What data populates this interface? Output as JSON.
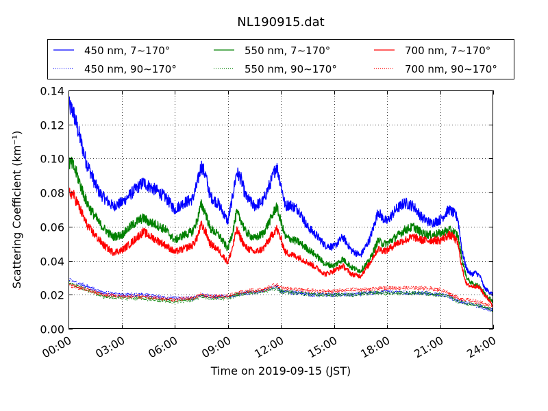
{
  "chart_data": {
    "type": "line",
    "title": "NL190915.dat",
    "xlabel": "Time on 2019-09-15 (JST)",
    "ylabel": "Scattering Coefficient (km⁻¹)",
    "x_unit": "hours",
    "xlim": [
      0,
      24
    ],
    "ylim": [
      0.0,
      0.14
    ],
    "grid": true,
    "legend_position": "top",
    "x_ticks": [
      {
        "value": 0,
        "label": "00:00"
      },
      {
        "value": 3,
        "label": "03:00"
      },
      {
        "value": 6,
        "label": "06:00"
      },
      {
        "value": 9,
        "label": "09:00"
      },
      {
        "value": 12,
        "label": "12:00"
      },
      {
        "value": 15,
        "label": "15:00"
      },
      {
        "value": 18,
        "label": "18:00"
      },
      {
        "value": 21,
        "label": "21:00"
      },
      {
        "value": 24,
        "label": "24:00"
      }
    ],
    "y_ticks": [
      {
        "value": 0.0,
        "label": "0.00"
      },
      {
        "value": 0.02,
        "label": "0.02"
      },
      {
        "value": 0.04,
        "label": "0.04"
      },
      {
        "value": 0.06,
        "label": "0.06"
      },
      {
        "value": 0.08,
        "label": "0.08"
      },
      {
        "value": 0.1,
        "label": "0.10"
      },
      {
        "value": 0.12,
        "label": "0.12"
      },
      {
        "value": 0.14,
        "label": "0.14"
      }
    ],
    "series": [
      {
        "name": "450 nm, 7∼170°",
        "color": "#0000ff",
        "style": "solid",
        "x": [
          0,
          0.25,
          0.5,
          0.75,
          1,
          1.25,
          1.5,
          1.75,
          2,
          2.5,
          3,
          3.5,
          4,
          4.25,
          4.5,
          5,
          5.5,
          6,
          6.5,
          7,
          7.25,
          7.5,
          7.75,
          8,
          8.5,
          9,
          9.25,
          9.5,
          9.75,
          10,
          10.5,
          11,
          11.5,
          11.75,
          12,
          12.25,
          12.5,
          13,
          13.5,
          14,
          14.5,
          15,
          15.5,
          16,
          16.5,
          17,
          17.25,
          17.5,
          17.75,
          18,
          18.5,
          19,
          19.5,
          20,
          20.5,
          21,
          21.5,
          21.75,
          22,
          22.25,
          22.5,
          22.75,
          23,
          23.25,
          23.5,
          24
        ],
        "y": [
          0.131,
          0.128,
          0.118,
          0.108,
          0.098,
          0.092,
          0.085,
          0.08,
          0.077,
          0.072,
          0.074,
          0.079,
          0.084,
          0.086,
          0.084,
          0.081,
          0.077,
          0.07,
          0.074,
          0.076,
          0.084,
          0.096,
          0.09,
          0.078,
          0.073,
          0.063,
          0.076,
          0.092,
          0.088,
          0.078,
          0.072,
          0.075,
          0.088,
          0.096,
          0.085,
          0.072,
          0.073,
          0.07,
          0.06,
          0.055,
          0.049,
          0.048,
          0.054,
          0.046,
          0.043,
          0.052,
          0.06,
          0.069,
          0.065,
          0.063,
          0.07,
          0.074,
          0.072,
          0.065,
          0.062,
          0.064,
          0.07,
          0.068,
          0.065,
          0.045,
          0.035,
          0.032,
          0.033,
          0.031,
          0.024,
          0.02
        ]
      },
      {
        "name": "450 nm, 90∼170°",
        "color": "#0000ff",
        "style": "dotted",
        "x": [
          0,
          1,
          2,
          3,
          4,
          5,
          6,
          7,
          7.5,
          8,
          9,
          9.5,
          10,
          11,
          11.75,
          12,
          13,
          14,
          15,
          16,
          17,
          18,
          19,
          20,
          21,
          21.5,
          22,
          23,
          24
        ],
        "y": [
          0.029,
          0.025,
          0.021,
          0.02,
          0.02,
          0.019,
          0.018,
          0.018,
          0.02,
          0.019,
          0.019,
          0.02,
          0.021,
          0.022,
          0.025,
          0.022,
          0.021,
          0.02,
          0.02,
          0.02,
          0.021,
          0.022,
          0.021,
          0.021,
          0.02,
          0.019,
          0.016,
          0.014,
          0.011
        ]
      },
      {
        "name": "550 nm, 7∼170°",
        "color": "#008000",
        "style": "solid",
        "x": [
          0,
          0.25,
          0.5,
          0.75,
          1,
          1.25,
          1.5,
          1.75,
          2,
          2.5,
          3,
          3.5,
          4,
          4.25,
          4.5,
          5,
          5.5,
          6,
          6.5,
          7,
          7.25,
          7.5,
          7.75,
          8,
          8.5,
          9,
          9.25,
          9.5,
          9.75,
          10,
          10.5,
          11,
          11.5,
          11.75,
          12,
          12.25,
          12.5,
          13,
          13.5,
          14,
          14.5,
          15,
          15.5,
          16,
          16.5,
          17,
          17.25,
          17.5,
          17.75,
          18,
          18.5,
          19,
          19.5,
          20,
          20.5,
          21,
          21.5,
          21.75,
          22,
          22.25,
          22.5,
          22.75,
          23,
          23.25,
          23.5,
          24
        ],
        "y": [
          0.098,
          0.096,
          0.09,
          0.082,
          0.075,
          0.07,
          0.066,
          0.062,
          0.059,
          0.054,
          0.055,
          0.06,
          0.064,
          0.065,
          0.063,
          0.061,
          0.058,
          0.052,
          0.055,
          0.057,
          0.063,
          0.073,
          0.068,
          0.059,
          0.055,
          0.047,
          0.056,
          0.068,
          0.064,
          0.057,
          0.053,
          0.056,
          0.066,
          0.072,
          0.063,
          0.054,
          0.053,
          0.051,
          0.047,
          0.043,
          0.038,
          0.037,
          0.041,
          0.036,
          0.034,
          0.04,
          0.046,
          0.052,
          0.05,
          0.05,
          0.054,
          0.058,
          0.06,
          0.056,
          0.055,
          0.056,
          0.058,
          0.057,
          0.055,
          0.04,
          0.03,
          0.027,
          0.026,
          0.025,
          0.021,
          0.016
        ]
      },
      {
        "name": "550 nm, 90∼170°",
        "color": "#008000",
        "style": "dotted",
        "x": [
          0,
          1,
          2,
          3,
          4,
          5,
          6,
          7,
          7.5,
          8,
          9,
          9.5,
          10,
          11,
          11.75,
          12,
          13,
          14,
          15,
          16,
          17,
          18,
          19,
          20,
          21,
          21.5,
          22,
          23,
          24
        ],
        "y": [
          0.027,
          0.023,
          0.019,
          0.018,
          0.018,
          0.017,
          0.016,
          0.017,
          0.019,
          0.018,
          0.018,
          0.02,
          0.021,
          0.022,
          0.024,
          0.022,
          0.021,
          0.02,
          0.02,
          0.02,
          0.021,
          0.021,
          0.021,
          0.021,
          0.02,
          0.019,
          0.016,
          0.014,
          0.011
        ]
      },
      {
        "name": "700 nm, 7∼170°",
        "color": "#ff0000",
        "style": "solid",
        "x": [
          0,
          0.25,
          0.5,
          0.75,
          1,
          1.25,
          1.5,
          1.75,
          2,
          2.5,
          3,
          3.5,
          4,
          4.25,
          4.5,
          5,
          5.5,
          6,
          6.5,
          7,
          7.25,
          7.5,
          7.75,
          8,
          8.5,
          9,
          9.25,
          9.5,
          9.75,
          10,
          10.5,
          11,
          11.5,
          11.75,
          12,
          12.25,
          12.5,
          13,
          13.5,
          14,
          14.5,
          15,
          15.5,
          16,
          16.5,
          17,
          17.25,
          17.5,
          17.75,
          18,
          18.5,
          19,
          19.5,
          20,
          20.5,
          21,
          21.5,
          21.75,
          22,
          22.25,
          22.5,
          22.75,
          23,
          23.25,
          23.5,
          24
        ],
        "y": [
          0.08,
          0.079,
          0.074,
          0.068,
          0.062,
          0.058,
          0.055,
          0.052,
          0.049,
          0.045,
          0.046,
          0.05,
          0.055,
          0.057,
          0.055,
          0.052,
          0.049,
          0.045,
          0.047,
          0.049,
          0.053,
          0.061,
          0.057,
          0.05,
          0.046,
          0.039,
          0.047,
          0.058,
          0.053,
          0.048,
          0.045,
          0.047,
          0.055,
          0.059,
          0.053,
          0.045,
          0.044,
          0.042,
          0.039,
          0.036,
          0.032,
          0.034,
          0.037,
          0.032,
          0.031,
          0.038,
          0.043,
          0.047,
          0.046,
          0.046,
          0.05,
          0.052,
          0.054,
          0.052,
          0.052,
          0.052,
          0.055,
          0.054,
          0.05,
          0.035,
          0.026,
          0.025,
          0.025,
          0.024,
          0.02,
          0.014
        ]
      },
      {
        "name": "700 nm, 90∼170°",
        "color": "#ff0000",
        "style": "dotted",
        "x": [
          0,
          1,
          2,
          3,
          4,
          5,
          6,
          7,
          7.5,
          8,
          9,
          9.5,
          10,
          11,
          11.75,
          12,
          13,
          14,
          15,
          16,
          17,
          18,
          19,
          20,
          21,
          21.5,
          22,
          23,
          24
        ],
        "y": [
          0.026,
          0.023,
          0.02,
          0.019,
          0.019,
          0.018,
          0.017,
          0.018,
          0.02,
          0.019,
          0.019,
          0.021,
          0.022,
          0.023,
          0.026,
          0.024,
          0.023,
          0.022,
          0.022,
          0.023,
          0.023,
          0.024,
          0.024,
          0.024,
          0.023,
          0.021,
          0.018,
          0.016,
          0.013
        ]
      }
    ]
  }
}
